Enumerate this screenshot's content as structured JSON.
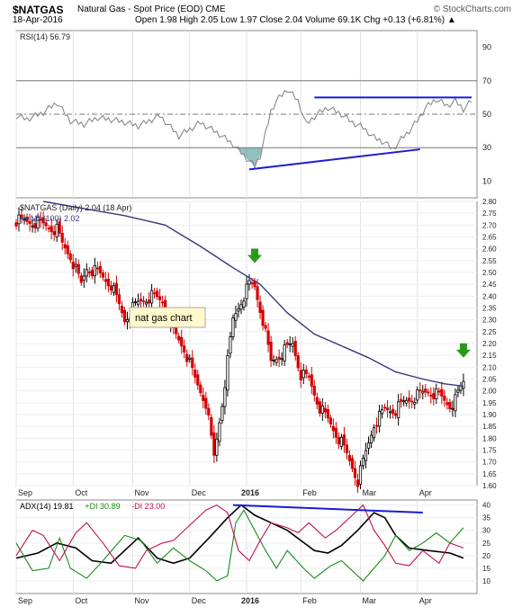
{
  "header": {
    "symbol": "$NATGAS",
    "description": "Natural Gas - Spot Price (EOD) CME",
    "watermark": "© StockCharts.com",
    "date": "18-Apr-2016",
    "ohlc": "Open 1.98 High 2.05 Low 1.97 Close 2.04 Volume 69.1K Chg +0.13 (+6.81%) ▲"
  },
  "annotation": "nat gas chart",
  "chart_data": [
    {
      "type": "line",
      "panel": "RSI",
      "legend": "RSI(14) 56.79",
      "ylim": [
        0,
        100
      ],
      "y_ticks": [
        "10",
        "30",
        "50",
        "70",
        "90"
      ],
      "reference_lines": [
        30,
        50,
        70
      ],
      "series": [
        {
          "name": "RSI(14)",
          "points": [
            [
              0,
              49
            ],
            [
              4,
              47
            ],
            [
              10,
              51
            ],
            [
              15,
              57
            ],
            [
              20,
              46
            ],
            [
              25,
              44
            ],
            [
              30,
              48
            ],
            [
              38,
              46
            ],
            [
              45,
              43
            ],
            [
              53,
              49
            ],
            [
              60,
              37
            ],
            [
              68,
              45
            ],
            [
              75,
              38
            ],
            [
              80,
              32
            ],
            [
              86,
              22
            ],
            [
              88,
              19
            ],
            [
              90,
              25
            ],
            [
              94,
              52
            ],
            [
              96,
              58
            ],
            [
              100,
              65
            ],
            [
              104,
              58
            ],
            [
              107,
              44
            ],
            [
              111,
              50
            ],
            [
              115,
              54
            ],
            [
              120,
              50
            ],
            [
              124,
              45
            ],
            [
              128,
              42
            ],
            [
              132,
              36
            ],
            [
              136,
              33
            ],
            [
              139,
              29
            ],
            [
              142,
              35
            ],
            [
              145,
              40
            ],
            [
              148,
              46
            ],
            [
              151,
              54
            ],
            [
              155,
              59
            ],
            [
              159,
              55
            ],
            [
              162,
              58
            ],
            [
              165,
              53
            ],
            [
              168,
              58
            ]
          ]
        }
      ],
      "trendlines": [
        {
          "from": [
            86,
            17
          ],
          "to": [
            149,
            29
          ],
          "color": "#1a1ad6"
        },
        {
          "from": [
            110,
            60
          ],
          "to": [
            168,
            60
          ],
          "color": "#1a1ad6"
        }
      ]
    },
    {
      "type": "candlestick",
      "panel": "Price",
      "title": "$NATGAS (Daily) 2.04 (18 Apr)",
      "legend": "MA(100) 2.02",
      "ylim": [
        1.6,
        2.8
      ],
      "y_ticks": [
        "1.60",
        "1.65",
        "1.70",
        "1.75",
        "1.80",
        "1.85",
        "1.90",
        "1.95",
        "2.00",
        "2.05",
        "2.10",
        "2.15",
        "2.20",
        "2.25",
        "2.30",
        "2.35",
        "2.40",
        "2.45",
        "2.50",
        "2.55",
        "2.60",
        "2.65",
        "2.70",
        "2.75",
        "2.80"
      ],
      "x_labels": [
        "Sep",
        "Oct",
        "Nov",
        "Dec",
        "2016",
        "Feb",
        "Mar",
        "Apr"
      ],
      "x_label_days": [
        0,
        21,
        43,
        64,
        85,
        105,
        127,
        148
      ],
      "closes": [
        [
          0,
          2.72
        ],
        [
          8,
          2.71
        ],
        [
          15,
          2.68
        ],
        [
          17,
          2.62
        ],
        [
          20,
          2.57
        ],
        [
          24,
          2.45
        ],
        [
          26,
          2.52
        ],
        [
          30,
          2.5
        ],
        [
          35,
          2.45
        ],
        [
          40,
          2.3
        ],
        [
          43,
          2.35
        ],
        [
          46,
          2.38
        ],
        [
          50,
          2.4
        ],
        [
          54,
          2.38
        ],
        [
          58,
          2.25
        ],
        [
          62,
          2.18
        ],
        [
          66,
          2.05
        ],
        [
          70,
          1.95
        ],
        [
          73,
          1.72
        ],
        [
          76,
          1.95
        ],
        [
          80,
          2.3
        ],
        [
          83,
          2.38
        ],
        [
          86,
          2.45
        ],
        [
          88,
          2.44
        ],
        [
          91,
          2.3
        ],
        [
          94,
          2.12
        ],
        [
          98,
          2.16
        ],
        [
          102,
          2.2
        ],
        [
          105,
          2.07
        ],
        [
          108,
          2.05
        ],
        [
          112,
          1.93
        ],
        [
          116,
          1.86
        ],
        [
          120,
          1.78
        ],
        [
          124,
          1.68
        ],
        [
          126,
          1.62
        ],
        [
          128,
          1.7
        ],
        [
          132,
          1.86
        ],
        [
          136,
          1.92
        ],
        [
          140,
          1.92
        ],
        [
          144,
          1.96
        ],
        [
          148,
          1.98
        ],
        [
          152,
          2.0
        ],
        [
          156,
          1.98
        ],
        [
          160,
          1.94
        ],
        [
          162,
          1.96
        ],
        [
          165,
          2.04
        ]
      ],
      "ma100": [
        [
          10,
          2.8
        ],
        [
          25,
          2.77
        ],
        [
          40,
          2.74
        ],
        [
          55,
          2.7
        ],
        [
          68,
          2.61
        ],
        [
          80,
          2.52
        ],
        [
          90,
          2.45
        ],
        [
          100,
          2.33
        ],
        [
          110,
          2.24
        ],
        [
          120,
          2.19
        ],
        [
          130,
          2.14
        ],
        [
          140,
          2.08
        ],
        [
          150,
          2.05
        ],
        [
          158,
          2.03
        ],
        [
          165,
          2.02
        ]
      ],
      "markers": [
        {
          "x": 88,
          "label": "down-arrow"
        },
        {
          "x": 165,
          "label": "down-arrow"
        }
      ],
      "colors": {
        "up": "#000000",
        "down": "#d40000",
        "ma": "#363680"
      }
    },
    {
      "type": "line",
      "panel": "ADX",
      "legend": [
        "ADX(14) 19.81",
        "+DI 30.89",
        "-DI 23.00"
      ],
      "ylim": [
        5,
        42
      ],
      "y_ticks": [
        "10",
        "15",
        "20",
        "25",
        "30",
        "35",
        "40"
      ],
      "series": [
        {
          "name": "ADX(14)",
          "color": "#000000",
          "points": [
            [
              0,
              19
            ],
            [
              8,
              21
            ],
            [
              15,
              25
            ],
            [
              22,
              23
            ],
            [
              28,
              18
            ],
            [
              35,
              17
            ],
            [
              45,
              27
            ],
            [
              52,
              19
            ],
            [
              58,
              17
            ],
            [
              64,
              19
            ],
            [
              72,
              28
            ],
            [
              78,
              35
            ],
            [
              83,
              40
            ],
            [
              88,
              36
            ],
            [
              94,
              33
            ],
            [
              100,
              30
            ],
            [
              105,
              26
            ],
            [
              110,
              22
            ],
            [
              115,
              21
            ],
            [
              120,
              24
            ],
            [
              126,
              30
            ],
            [
              132,
              37
            ],
            [
              136,
              35
            ],
            [
              140,
              28
            ],
            [
              145,
              23
            ],
            [
              152,
              22
            ],
            [
              160,
              21
            ],
            [
              165,
              19
            ]
          ]
        },
        {
          "name": "+DI",
          "color": "#1a8a1a",
          "points": [
            [
              0,
              25
            ],
            [
              6,
              14
            ],
            [
              12,
              15
            ],
            [
              16,
              27
            ],
            [
              20,
              15
            ],
            [
              26,
              11
            ],
            [
              32,
              18
            ],
            [
              40,
              28
            ],
            [
              46,
              26
            ],
            [
              52,
              17
            ],
            [
              58,
              23
            ],
            [
              64,
              18
            ],
            [
              70,
              14
            ],
            [
              74,
              10
            ],
            [
              78,
              12
            ],
            [
              81,
              33
            ],
            [
              84,
              38
            ],
            [
              88,
              30
            ],
            [
              92,
              22
            ],
            [
              96,
              15
            ],
            [
              100,
              22
            ],
            [
              106,
              15
            ],
            [
              110,
              11
            ],
            [
              116,
              16
            ],
            [
              120,
              18
            ],
            [
              124,
              14
            ],
            [
              128,
              10
            ],
            [
              132,
              15
            ],
            [
              136,
              20
            ],
            [
              140,
              28
            ],
            [
              145,
              22
            ],
            [
              150,
              25
            ],
            [
              155,
              29
            ],
            [
              160,
              25
            ],
            [
              165,
              31
            ]
          ]
        },
        {
          "name": "-DI",
          "color": "#c0124d",
          "points": [
            [
              0,
              20
            ],
            [
              6,
              30
            ],
            [
              10,
              28
            ],
            [
              16,
              18
            ],
            [
              22,
              29
            ],
            [
              26,
              33
            ],
            [
              32,
              25
            ],
            [
              38,
              16
            ],
            [
              44,
              15
            ],
            [
              48,
              22
            ],
            [
              54,
              25
            ],
            [
              58,
              26
            ],
            [
              64,
              32
            ],
            [
              70,
              38
            ],
            [
              74,
              40
            ],
            [
              78,
              37
            ],
            [
              82,
              22
            ],
            [
              86,
              18
            ],
            [
              90,
              26
            ],
            [
              94,
              33
            ],
            [
              100,
              31
            ],
            [
              104,
              29
            ],
            [
              108,
              33
            ],
            [
              114,
              27
            ],
            [
              118,
              30
            ],
            [
              124,
              36
            ],
            [
              128,
              40
            ],
            [
              132,
              30
            ],
            [
              136,
              24
            ],
            [
              140,
              17
            ],
            [
              145,
              16
            ],
            [
              150,
              22
            ],
            [
              156,
              17
            ],
            [
              160,
              25
            ],
            [
              165,
              23
            ]
          ]
        }
      ],
      "trendlines": [
        {
          "from": [
            80,
            40
          ],
          "to": [
            150,
            37
          ],
          "color": "#1a1ad6"
        }
      ]
    }
  ]
}
